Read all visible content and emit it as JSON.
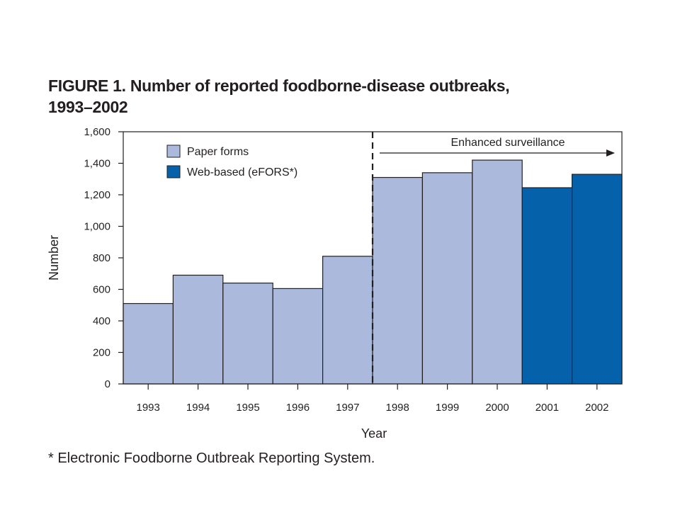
{
  "chart_data": {
    "type": "bar",
    "title_line1": "FIGURE 1. Number of reported foodborne-disease outbreaks,",
    "title_line2": "1993–2002",
    "xlabel": "Year",
    "ylabel": "Number",
    "ylim": [
      0,
      1600
    ],
    "yticks": [
      0,
      200,
      400,
      600,
      800,
      1000,
      1200,
      1400,
      1600
    ],
    "ytick_labels": [
      "0",
      "200",
      "400",
      "600",
      "800",
      "1,000",
      "1,200",
      "1,400",
      "1,600"
    ],
    "categories": [
      "1993",
      "1994",
      "1995",
      "1996",
      "1997",
      "1998",
      "1999",
      "2000",
      "2001",
      "2002"
    ],
    "values": [
      510,
      690,
      640,
      605,
      810,
      1310,
      1340,
      1420,
      1245,
      1330
    ],
    "bar_series": [
      "paper",
      "paper",
      "paper",
      "paper",
      "paper",
      "paper",
      "paper",
      "paper",
      "web",
      "web"
    ],
    "series": [
      {
        "key": "paper",
        "name": "Paper forms",
        "color": "#aab9dc"
      },
      {
        "key": "web",
        "name": "Web-based (eFORS*)",
        "color": "#0661ab"
      }
    ],
    "legend_position": "top-left",
    "grid": false,
    "annotation": {
      "text": "Enhanced surveillance",
      "divider_after": "1997"
    },
    "footnote": "* Electronic Foodborne Outbreak Reporting System."
  }
}
